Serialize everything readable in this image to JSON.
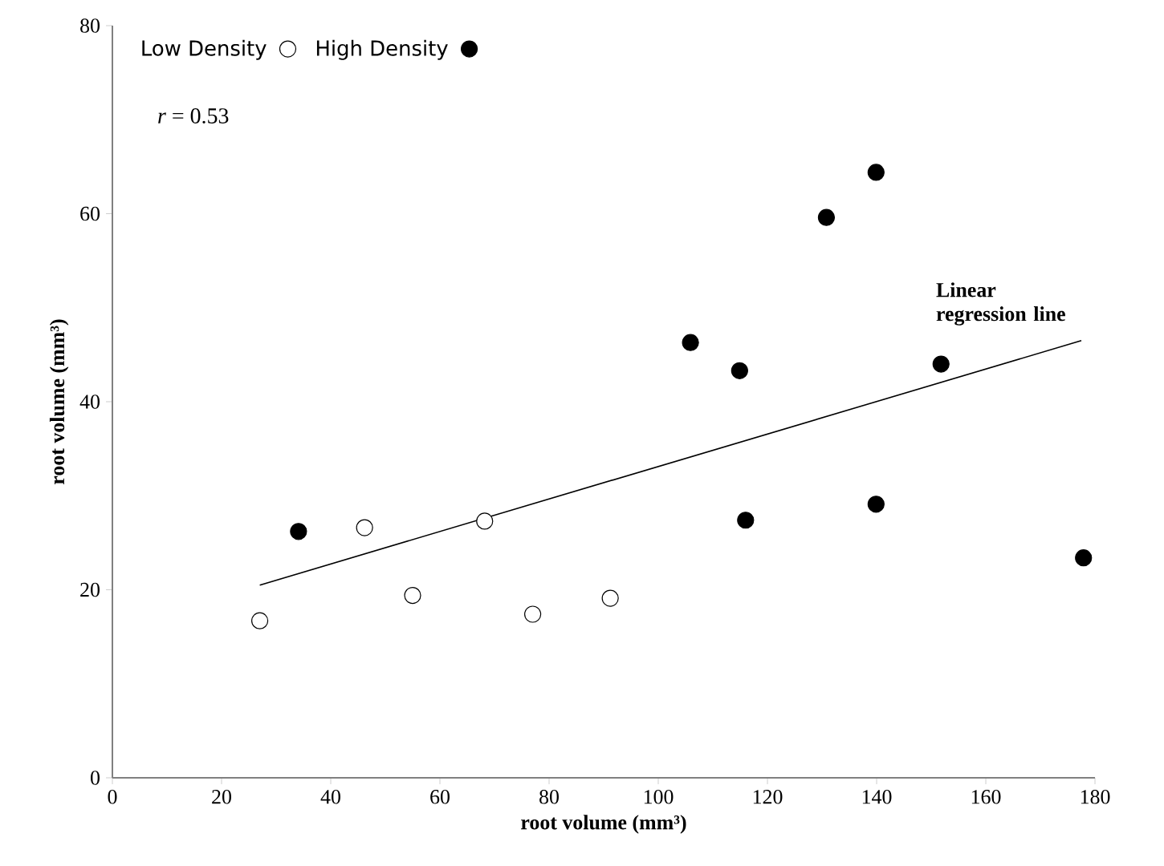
{
  "chart_data": {
    "type": "scatter",
    "xlabel": "root volume (mm³)",
    "ylabel": "root volume (mm³)",
    "annotations": [
      "*r* = 0.53"
    ],
    "xlim": [
      0,
      180
    ],
    "ylim": [
      0,
      80
    ],
    "xticks": [
      0,
      20,
      40,
      60,
      80,
      100,
      120,
      140,
      160,
      180
    ],
    "yticks": [
      0,
      20,
      40,
      60,
      80
    ],
    "grid": false,
    "legend": "top left",
    "series": [
      {
        "name": "Low Density",
        "marker": "circle",
        "color": "#ffffff",
        "x": [
          27,
          46.2,
          55,
          68.2,
          77,
          91.2
        ],
        "values": [
          16.7,
          26.6,
          19.4,
          27.3,
          17.4,
          19.1
        ]
      },
      {
        "name": "High Density",
        "marker": "circle",
        "color": "#000000",
        "x": [
          34.1,
          105.9,
          114.9,
          116,
          130.8,
          139.9,
          139.9,
          151.8,
          177.9
        ],
        "values": [
          26.2,
          46.3,
          43.3,
          27.4,
          59.6,
          64.4,
          29.1,
          44.0,
          23.4
        ]
      },
      {
        "name": "Linear regression line",
        "type": "line",
        "marker": "none",
        "color": "#000000",
        "x": [
          27,
          177.5
        ],
        "values": [
          20.5,
          46.5
        ]
      }
    ]
  }
}
